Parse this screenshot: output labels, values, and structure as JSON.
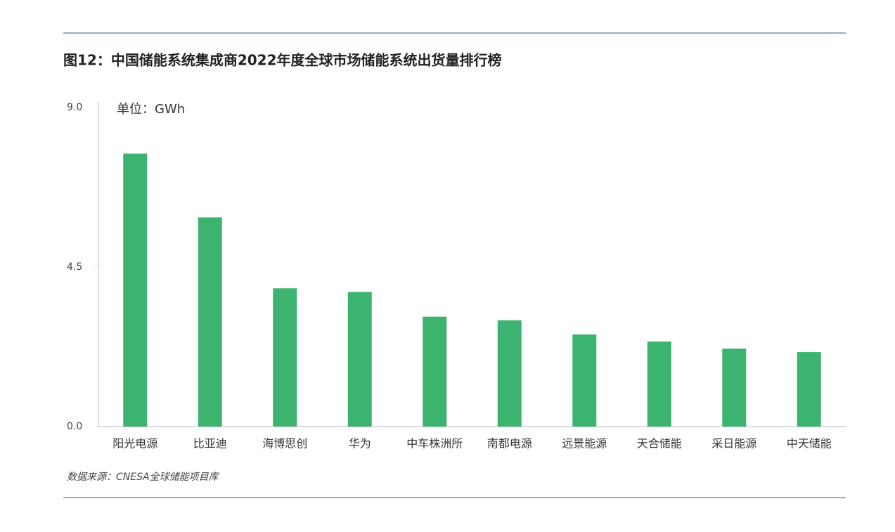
{
  "chart_data": {
    "type": "bar",
    "title": "图12：中国储能系统集成商2022年度全球市场储能系统出货量排行榜",
    "unit_label": "单位：GWh",
    "source": "数据来源：CNESA全球储能项目库",
    "categories": [
      "阳光电源",
      "比亚迪",
      "海博思创",
      "华为",
      "中车株洲所",
      "南都电源",
      "远景能源",
      "天合储能",
      "采日能源",
      "中天储能"
    ],
    "values": [
      7.7,
      5.9,
      3.9,
      3.8,
      3.1,
      3.0,
      2.6,
      2.4,
      2.2,
      2.1
    ],
    "color": "#3db370",
    "ylim": [
      0,
      9
    ],
    "yticks": [
      {
        "value": 0,
        "label": "0.0"
      },
      {
        "value": 4.5,
        "label": "4.5"
      },
      {
        "value": 9,
        "label": "9.0"
      }
    ],
    "grid": false
  }
}
